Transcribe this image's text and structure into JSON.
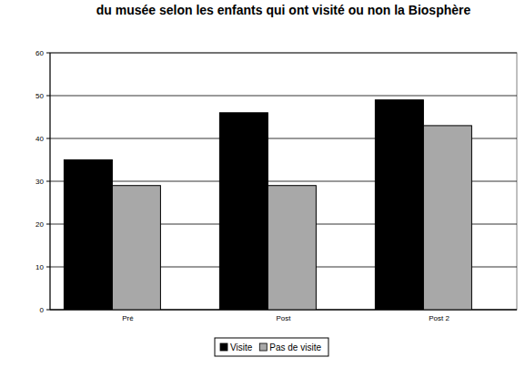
{
  "chart_data": {
    "type": "bar",
    "title": "du musée selon les enfants qui ont visité ou non la Biosphère",
    "categories": [
      "Pré",
      "Post",
      "Post 2"
    ],
    "series": [
      {
        "name": "Visite",
        "color": "#000000",
        "values": [
          35,
          46,
          49
        ]
      },
      {
        "name": "Pas de visite",
        "color": "#a8a8a8",
        "values": [
          29,
          29,
          43
        ]
      }
    ],
    "ylim": [
      0,
      60
    ],
    "yticks": [
      0,
      10,
      20,
      30,
      40,
      50,
      60
    ],
    "grid": true,
    "legend": "bottom"
  }
}
